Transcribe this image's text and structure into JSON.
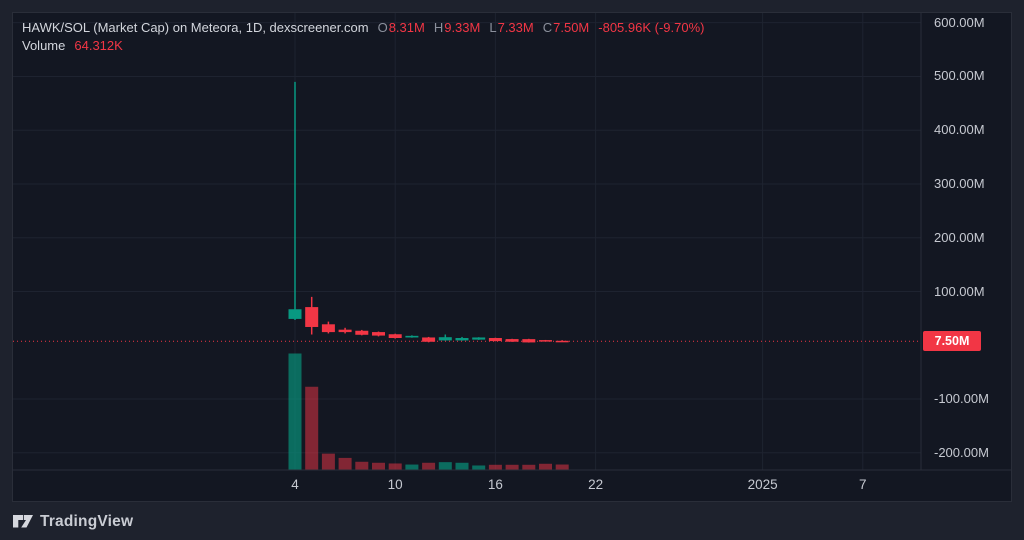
{
  "header": {
    "title": "HAWK/SOL (Market Cap) on Meteora, 1D, dexscreener.com",
    "ohlc": {
      "o_label": "O",
      "o": "8.31M",
      "h_label": "H",
      "h": "9.33M",
      "l_label": "L",
      "l": "7.33M",
      "c_label": "C",
      "c": "7.50M",
      "change": "-805.96K (-9.70%)"
    },
    "volume_label": "Volume",
    "volume_value": "64.312K"
  },
  "price_scale": {
    "current_price_badge": "7.50M"
  },
  "branding": {
    "name": "TradingView"
  },
  "colors": {
    "page_background": "#1e222d",
    "pane_background": "#131722",
    "grid": "#1e2330",
    "axis_separator": "#2a2e39",
    "axis_text": "#c6c9d1",
    "title_text": "#d3d6dd",
    "muted_text": "#8b909c",
    "up": "#089981",
    "down": "#f23645",
    "volume_up": "rgba(8,153,129,0.65)",
    "volume_down": "rgba(242,54,69,0.5)",
    "price_line": "#f23645",
    "badge_bg": "#f23645",
    "badge_text": "#ffffff"
  },
  "chart_data": {
    "type": "candlestick",
    "title": "HAWK/SOL (Market Cap) on Meteora, 1D, dexscreener.com",
    "pair": "HAWK/SOL",
    "metric": "Market Cap",
    "exchange": "Meteora",
    "interval": "1D",
    "data_source_label": "dexscreener.com",
    "y_unit": "USD market cap, millions (values estimated from gridlines)",
    "ylim": [
      -232,
      618
    ],
    "grid": true,
    "legend_position": "top-left",
    "y_ticks": [
      {
        "value": 600,
        "label": "600.00M"
      },
      {
        "value": 500,
        "label": "500.00M"
      },
      {
        "value": 400,
        "label": "400.00M"
      },
      {
        "value": 300,
        "label": "300.00M"
      },
      {
        "value": 200,
        "label": "200.00M"
      },
      {
        "value": 100,
        "label": "100.00M"
      },
      {
        "value": -100,
        "label": "-100.00M"
      },
      {
        "value": -200,
        "label": "-200.00M"
      }
    ],
    "x_ticks": [
      {
        "label": "4",
        "day_offset": 0
      },
      {
        "label": "10",
        "day_offset": 6
      },
      {
        "label": "16",
        "day_offset": 12
      },
      {
        "label": "22",
        "day_offset": 18
      },
      {
        "label": "2025",
        "day_offset": 28
      },
      {
        "label": "7",
        "day_offset": 34
      }
    ],
    "current_price": {
      "value": 7.5,
      "label": "7.50M"
    },
    "last_bar_readout": {
      "open": "8.31M",
      "high": "9.33M",
      "low": "7.33M",
      "close": "7.50M",
      "change": "-805.96K (-9.70%)",
      "volume": "64.312K"
    },
    "candles": [
      {
        "date": "2024-12-04",
        "day_offset": 0,
        "open": 49,
        "high": 490,
        "low": 47,
        "close": 67,
        "volume_k": 1500
      },
      {
        "date": "2024-12-05",
        "day_offset": 1,
        "open": 71,
        "high": 90,
        "low": 20,
        "close": 34,
        "volume_k": 1070
      },
      {
        "date": "2024-12-06",
        "day_offset": 2,
        "open": 39,
        "high": 44,
        "low": 22,
        "close": 24.5,
        "volume_k": 205
      },
      {
        "date": "2024-12-07",
        "day_offset": 3,
        "open": 29,
        "high": 32.5,
        "low": 22,
        "close": 24.5,
        "volume_k": 150
      },
      {
        "date": "2024-12-08",
        "day_offset": 4,
        "open": 27,
        "high": 28.5,
        "low": 18.5,
        "close": 19.5,
        "volume_k": 100
      },
      {
        "date": "2024-12-09",
        "day_offset": 5,
        "open": 24.5,
        "high": 25.5,
        "low": 16.5,
        "close": 18,
        "volume_k": 87
      },
      {
        "date": "2024-12-10",
        "day_offset": 6,
        "open": 20.5,
        "high": 21.5,
        "low": 12.5,
        "close": 13.5,
        "volume_k": 78
      },
      {
        "date": "2024-12-11",
        "day_offset": 7,
        "open": 14.5,
        "high": 18.5,
        "low": 14,
        "close": 17.5,
        "volume_k": 64
      },
      {
        "date": "2024-12-12",
        "day_offset": 8,
        "open": 14.5,
        "high": 15.5,
        "low": 5.5,
        "close": 6.5,
        "volume_k": 87
      },
      {
        "date": "2024-12-13",
        "day_offset": 9,
        "open": 9,
        "high": 20,
        "low": 8.5,
        "close": 15,
        "volume_k": 95
      },
      {
        "date": "2024-12-14",
        "day_offset": 10,
        "open": 9,
        "high": 15.5,
        "low": 8.5,
        "close": 13.5,
        "volume_k": 87
      },
      {
        "date": "2024-12-15",
        "day_offset": 11,
        "open": 10.5,
        "high": 15,
        "low": 10,
        "close": 14.5,
        "volume_k": 52
      },
      {
        "date": "2024-12-16",
        "day_offset": 12,
        "open": 13.5,
        "high": 14,
        "low": 7.5,
        "close": 7.8,
        "volume_k": 61
      },
      {
        "date": "2024-12-17",
        "day_offset": 13,
        "open": 11.5,
        "high": 12,
        "low": 6.3,
        "close": 6.6,
        "volume_k": 61
      },
      {
        "date": "2024-12-18",
        "day_offset": 14,
        "open": 11.4,
        "high": 12,
        "low": 5,
        "close": 5.3,
        "volume_k": 61
      },
      {
        "date": "2024-12-19",
        "day_offset": 15,
        "open": 9.6,
        "high": 9.9,
        "low": 7.9,
        "close": 8.31,
        "volume_k": 74
      },
      {
        "date": "2024-12-20",
        "day_offset": 16,
        "open": 8.31,
        "high": 9.33,
        "low": 7.33,
        "close": 7.5,
        "volume_k": 64.312
      }
    ]
  }
}
